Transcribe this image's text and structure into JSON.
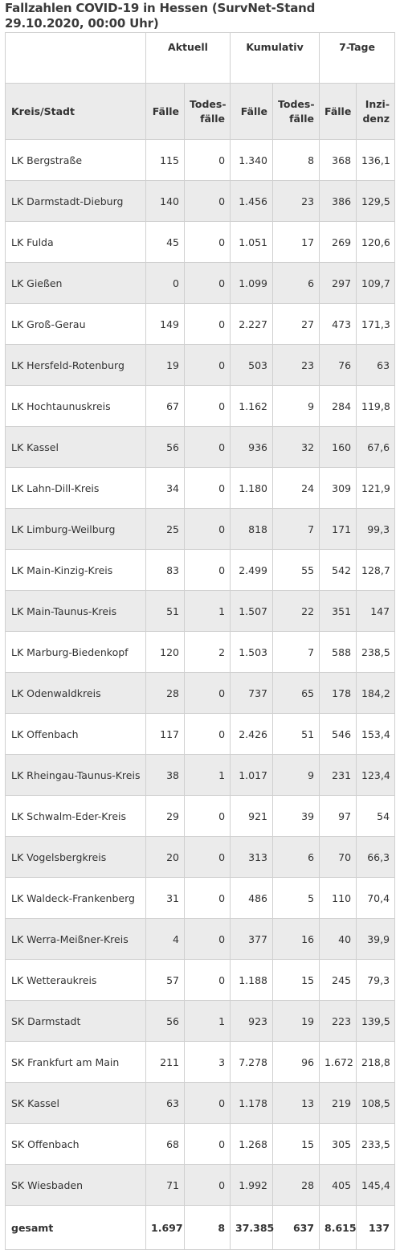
{
  "title": "Fallzahlen COVID-19 in Hessen (SurvNet-Stand 29.10.2020, 00:00 Uhr)",
  "group_headers": [
    "Aktuell",
    "Kumulativ",
    "7-Tage"
  ],
  "column_headers": [
    "Kreis/Stadt",
    "Fälle",
    "Todes-fälle",
    "Fälle",
    "Todes-fälle",
    "Fälle",
    "Inzi-denz"
  ],
  "rows": [
    [
      "LK Bergstraße",
      "115",
      "0",
      "1.340",
      "8",
      "368",
      "136,1"
    ],
    [
      "LK Darmstadt-Dieburg",
      "140",
      "0",
      "1.456",
      "23",
      "386",
      "129,5"
    ],
    [
      "LK Fulda",
      "45",
      "0",
      "1.051",
      "17",
      "269",
      "120,6"
    ],
    [
      "LK Gießen",
      "0",
      "0",
      "1.099",
      "6",
      "297",
      "109,7"
    ],
    [
      "LK Groß-Gerau",
      "149",
      "0",
      "2.227",
      "27",
      "473",
      "171,3"
    ],
    [
      "LK Hersfeld-Rotenburg",
      "19",
      "0",
      "503",
      "23",
      "76",
      "63"
    ],
    [
      "LK Hochtaunuskreis",
      "67",
      "0",
      "1.162",
      "9",
      "284",
      "119,8"
    ],
    [
      "LK Kassel",
      "56",
      "0",
      "936",
      "32",
      "160",
      "67,6"
    ],
    [
      "LK Lahn-Dill-Kreis",
      "34",
      "0",
      "1.180",
      "24",
      "309",
      "121,9"
    ],
    [
      "LK Limburg-Weilburg",
      "25",
      "0",
      "818",
      "7",
      "171",
      "99,3"
    ],
    [
      "LK Main-Kinzig-Kreis",
      "83",
      "0",
      "2.499",
      "55",
      "542",
      "128,7"
    ],
    [
      "LK Main-Taunus-Kreis",
      "51",
      "1",
      "1.507",
      "22",
      "351",
      "147"
    ],
    [
      "LK Marburg-Biedenkopf",
      "120",
      "2",
      "1.503",
      "7",
      "588",
      "238,5"
    ],
    [
      "LK Odenwaldkreis",
      "28",
      "0",
      "737",
      "65",
      "178",
      "184,2"
    ],
    [
      "LK Offenbach",
      "117",
      "0",
      "2.426",
      "51",
      "546",
      "153,4"
    ],
    [
      "LK Rheingau-Taunus-Kreis",
      "38",
      "1",
      "1.017",
      "9",
      "231",
      "123,4"
    ],
    [
      "LK Schwalm-Eder-Kreis",
      "29",
      "0",
      "921",
      "39",
      "97",
      "54"
    ],
    [
      "LK Vogelsbergkreis",
      "20",
      "0",
      "313",
      "6",
      "70",
      "66,3"
    ],
    [
      "LK Waldeck-Frankenberg",
      "31",
      "0",
      "486",
      "5",
      "110",
      "70,4"
    ],
    [
      "LK Werra-Meißner-Kreis",
      "4",
      "0",
      "377",
      "16",
      "40",
      "39,9"
    ],
    [
      "LK Wetteraukreis",
      "57",
      "0",
      "1.188",
      "15",
      "245",
      "79,3"
    ],
    [
      "SK Darmstadt",
      "56",
      "1",
      "923",
      "19",
      "223",
      "139,5"
    ],
    [
      "SK Frankfurt am Main",
      "211",
      "3",
      "7.278",
      "96",
      "1.672",
      "218,8"
    ],
    [
      "SK Kassel",
      "63",
      "0",
      "1.178",
      "13",
      "219",
      "108,5"
    ],
    [
      "SK Offenbach",
      "68",
      "0",
      "1.268",
      "15",
      "305",
      "233,5"
    ],
    [
      "SK Wiesbaden",
      "71",
      "0",
      "1.992",
      "28",
      "405",
      "145,4"
    ]
  ],
  "total": [
    "gesamt",
    "1.697",
    "8",
    "37.385",
    "637",
    "8.615",
    "137"
  ]
}
